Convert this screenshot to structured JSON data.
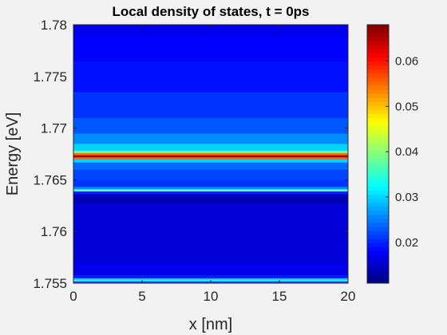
{
  "chart_data": {
    "type": "heatmap",
    "title": "Local density of states, t = 0ps",
    "xlabel": "x [nm]",
    "ylabel": "Energy [eV]",
    "xlim": [
      0,
      20
    ],
    "ylim": [
      1.755,
      1.78
    ],
    "xticks": [
      0,
      5,
      10,
      15,
      20
    ],
    "xtick_labels": [
      "0",
      "5",
      "10",
      "15",
      "20"
    ],
    "yticks": [
      1.755,
      1.76,
      1.765,
      1.77,
      1.775,
      1.78
    ],
    "ytick_labels": [
      "1.755",
      "1.76",
      "1.765",
      "1.77",
      "1.775",
      "1.78"
    ],
    "colormap": "jet",
    "colorbar": {
      "range": [
        0.011,
        0.068
      ],
      "ticks": [
        0.02,
        0.03,
        0.04,
        0.05,
        0.06
      ],
      "tick_labels": [
        "0.02",
        "0.03",
        "0.04",
        "0.05",
        "0.06"
      ]
    },
    "note_x_uniform": true,
    "energy_profile": [
      {
        "energy": 1.755,
        "ldos": 0.018
      },
      {
        "energy": 1.7552,
        "ldos": 0.026
      },
      {
        "energy": 1.7553,
        "ldos": 0.04
      },
      {
        "energy": 1.7554,
        "ldos": 0.03
      },
      {
        "energy": 1.7556,
        "ldos": 0.02
      },
      {
        "energy": 1.756,
        "ldos": 0.017
      },
      {
        "energy": 1.758,
        "ldos": 0.016
      },
      {
        "energy": 1.76,
        "ldos": 0.016
      },
      {
        "energy": 1.762,
        "ldos": 0.016
      },
      {
        "energy": 1.7635,
        "ldos": 0.014
      },
      {
        "energy": 1.7638,
        "ldos": 0.02
      },
      {
        "energy": 1.764,
        "ldos": 0.038
      },
      {
        "energy": 1.7642,
        "ldos": 0.026
      },
      {
        "energy": 1.7645,
        "ldos": 0.021
      },
      {
        "energy": 1.7655,
        "ldos": 0.022
      },
      {
        "energy": 1.7665,
        "ldos": 0.024
      },
      {
        "energy": 1.7669,
        "ldos": 0.03
      },
      {
        "energy": 1.7671,
        "ldos": 0.055
      },
      {
        "energy": 1.7673,
        "ldos": 0.066
      },
      {
        "energy": 1.7675,
        "ldos": 0.055
      },
      {
        "energy": 1.7677,
        "ldos": 0.038
      },
      {
        "energy": 1.768,
        "ldos": 0.03
      },
      {
        "energy": 1.769,
        "ldos": 0.026
      },
      {
        "energy": 1.77,
        "ldos": 0.023
      },
      {
        "energy": 1.772,
        "ldos": 0.021
      },
      {
        "energy": 1.775,
        "ldos": 0.019
      },
      {
        "energy": 1.778,
        "ldos": 0.018
      },
      {
        "energy": 1.78,
        "ldos": 0.017
      }
    ]
  }
}
